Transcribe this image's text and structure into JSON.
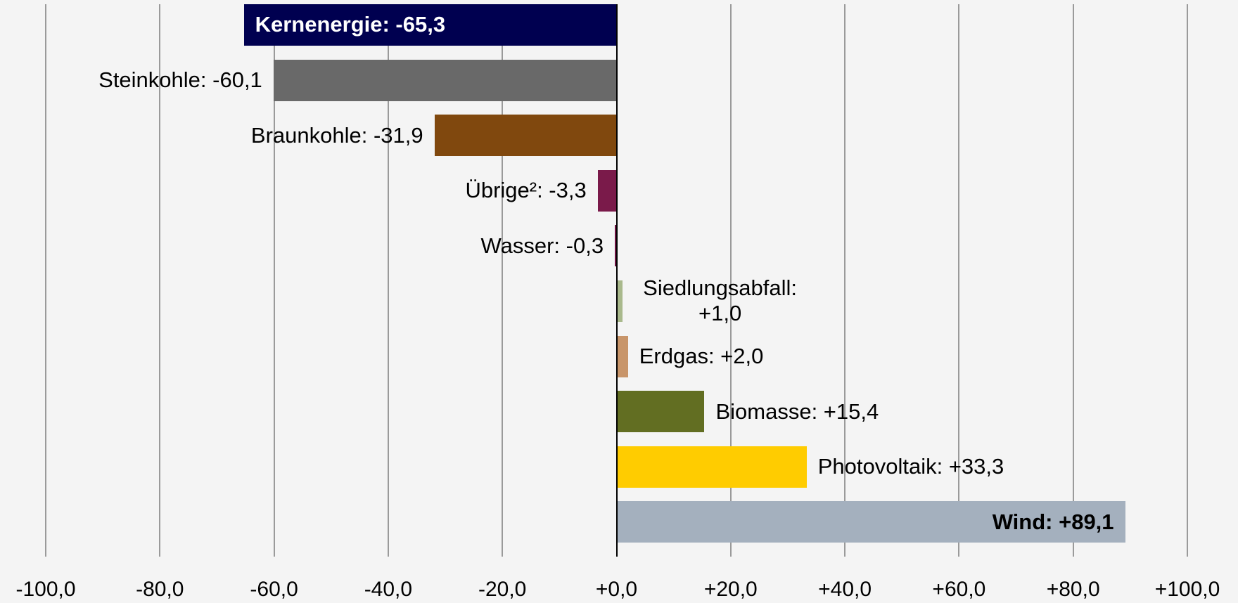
{
  "chart_data": {
    "type": "hbar",
    "value_labels": [
      "Kernenergie: -65,3",
      "Steinkohle: -60,1",
      "Braunkohle: -31,9",
      "Übrige²: -3,3",
      "Wasser: -0,3",
      "Siedlungsabfall: +1,0",
      "Erdgas: +2,0",
      "Biomasse: +15,4",
      "Photovoltaik: +33,3",
      "Wind: +89,1"
    ],
    "values": [
      -65.3,
      -60.1,
      -31.9,
      -3.3,
      -0.3,
      1.0,
      2.0,
      15.4,
      33.3,
      89.1
    ],
    "colors": [
      "#000050",
      "#696969",
      "#80480e",
      "#7a1a4a",
      "#6b1040",
      "#a9b98c",
      "#c8956a",
      "#626e22",
      "#ffcc00",
      "#a4b0be"
    ],
    "inside_labels": [
      0,
      9
    ],
    "xlim": [
      -100,
      100
    ],
    "xticks": [
      {
        "value": -100,
        "label": "-100,0"
      },
      {
        "value": -80,
        "label": "-80,0"
      },
      {
        "value": -60,
        "label": "-60,0"
      },
      {
        "value": -40,
        "label": "-40,0"
      },
      {
        "value": -20,
        "label": "-20,0"
      },
      {
        "value": 0,
        "label": "+0,0"
      },
      {
        "value": 20,
        "label": "+20,0"
      },
      {
        "value": 40,
        "label": "+40,0"
      },
      {
        "value": 60,
        "label": "+60,0"
      },
      {
        "value": 80,
        "label": "+80,0"
      },
      {
        "value": 100,
        "label": "+100,0"
      }
    ],
    "grid": true
  }
}
